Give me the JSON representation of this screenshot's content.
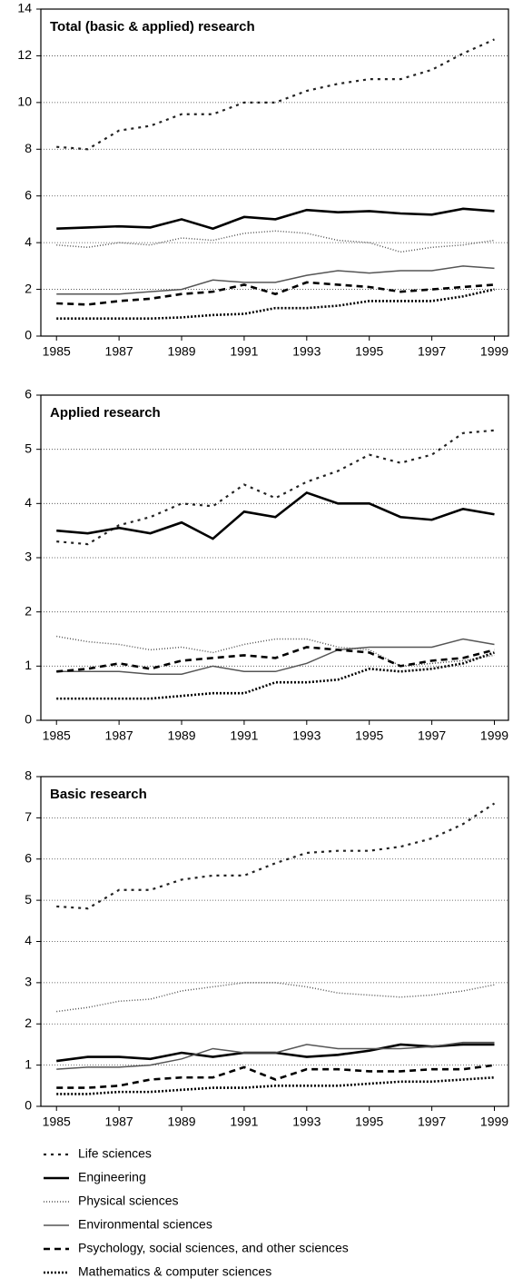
{
  "chart_data": [
    {
      "type": "line",
      "title": "Total (basic & applied) research",
      "x": [
        1985,
        1986,
        1987,
        1988,
        1989,
        1990,
        1991,
        1992,
        1993,
        1994,
        1995,
        1996,
        1997,
        1998,
        1999
      ],
      "xlim": [
        1984.5,
        1999.45
      ],
      "xticks": [
        1985,
        1987,
        1989,
        1991,
        1993,
        1995,
        1997,
        1999
      ],
      "ylim": [
        0,
        14
      ],
      "yticks": [
        0,
        2,
        4,
        6,
        8,
        10,
        12,
        14
      ],
      "grid": true,
      "series": [
        {
          "name": "Life sciences",
          "color": "#222",
          "dash": "3 5",
          "width": 2.2,
          "values": [
            8.1,
            8.0,
            8.8,
            9.0,
            9.5,
            9.5,
            10.0,
            10.0,
            10.5,
            10.8,
            11.0,
            11.0,
            11.4,
            12.1,
            12.7
          ]
        },
        {
          "name": "Engineering",
          "color": "#000",
          "dash": "none",
          "width": 2.6,
          "values": [
            4.6,
            4.65,
            4.7,
            4.65,
            5.0,
            4.6,
            5.1,
            5.0,
            5.4,
            5.3,
            5.35,
            5.25,
            5.2,
            5.45,
            5.35
          ]
        },
        {
          "name": "Physical sciences",
          "color": "#555",
          "dash": "1 2",
          "width": 1.5,
          "values": [
            3.9,
            3.8,
            4.0,
            3.9,
            4.2,
            4.1,
            4.4,
            4.5,
            4.4,
            4.1,
            4.0,
            3.6,
            3.8,
            3.9,
            4.1
          ]
        },
        {
          "name": "Environmental sciences",
          "color": "#555",
          "dash": "none",
          "width": 1.5,
          "values": [
            1.8,
            1.8,
            1.8,
            1.9,
            2.0,
            2.4,
            2.3,
            2.3,
            2.6,
            2.8,
            2.7,
            2.8,
            2.8,
            3.0,
            2.9
          ]
        },
        {
          "name": "Psychology, social sciences, and other sciences",
          "color": "#000",
          "dash": "7 5",
          "width": 2.6,
          "values": [
            1.4,
            1.35,
            1.5,
            1.6,
            1.8,
            1.9,
            2.2,
            1.8,
            2.3,
            2.2,
            2.1,
            1.9,
            2.0,
            2.1,
            2.2
          ]
        },
        {
          "name": "Mathematics & computer sciences",
          "color": "#000",
          "dash": "2 2",
          "width": 2.6,
          "values": [
            0.75,
            0.75,
            0.75,
            0.75,
            0.8,
            0.9,
            0.95,
            1.2,
            1.2,
            1.3,
            1.5,
            1.5,
            1.5,
            1.7,
            2.0
          ]
        }
      ]
    },
    {
      "type": "line",
      "title": "Applied research",
      "x": [
        1985,
        1986,
        1987,
        1988,
        1989,
        1990,
        1991,
        1992,
        1993,
        1994,
        1995,
        1996,
        1997,
        1998,
        1999
      ],
      "xlim": [
        1984.5,
        1999.45
      ],
      "xticks": [
        1985,
        1987,
        1989,
        1991,
        1993,
        1995,
        1997,
        1999
      ],
      "ylim": [
        0,
        6
      ],
      "yticks": [
        0,
        1,
        2,
        3,
        4,
        5,
        6
      ],
      "grid": true,
      "series": [
        {
          "name": "Life sciences",
          "color": "#222",
          "dash": "3 5",
          "width": 2.2,
          "values": [
            3.3,
            3.25,
            3.6,
            3.75,
            4.0,
            3.95,
            4.35,
            4.1,
            4.4,
            4.6,
            4.9,
            4.75,
            4.9,
            5.3,
            5.35
          ]
        },
        {
          "name": "Engineering",
          "color": "#000",
          "dash": "none",
          "width": 2.6,
          "values": [
            3.5,
            3.45,
            3.55,
            3.45,
            3.65,
            3.35,
            3.85,
            3.75,
            4.2,
            4.0,
            4.0,
            3.75,
            3.7,
            3.9,
            3.8
          ]
        },
        {
          "name": "Physical sciences",
          "color": "#555",
          "dash": "1 2",
          "width": 1.5,
          "values": [
            1.55,
            1.45,
            1.4,
            1.3,
            1.35,
            1.25,
            1.4,
            1.5,
            1.5,
            1.35,
            1.3,
            1.0,
            1.05,
            1.1,
            1.2
          ]
        },
        {
          "name": "Environmental sciences",
          "color": "#555",
          "dash": "none",
          "width": 1.5,
          "values": [
            0.9,
            0.9,
            0.9,
            0.85,
            0.85,
            1.0,
            0.9,
            0.9,
            1.05,
            1.3,
            1.35,
            1.35,
            1.35,
            1.5,
            1.4
          ]
        },
        {
          "name": "Psychology, social sciences, and other sciences",
          "color": "#000",
          "dash": "7 5",
          "width": 2.6,
          "values": [
            0.9,
            0.95,
            1.05,
            0.95,
            1.1,
            1.15,
            1.2,
            1.15,
            1.35,
            1.3,
            1.25,
            1.0,
            1.1,
            1.15,
            1.3
          ]
        },
        {
          "name": "Mathematics & computer sciences",
          "color": "#000",
          "dash": "2 2",
          "width": 2.6,
          "values": [
            0.4,
            0.4,
            0.4,
            0.4,
            0.45,
            0.5,
            0.5,
            0.7,
            0.7,
            0.75,
            0.95,
            0.9,
            0.95,
            1.05,
            1.25
          ]
        }
      ]
    },
    {
      "type": "line",
      "title": "Basic research",
      "x": [
        1985,
        1986,
        1987,
        1988,
        1989,
        1990,
        1991,
        1992,
        1993,
        1994,
        1995,
        1996,
        1997,
        1998,
        1999
      ],
      "xlim": [
        1984.5,
        1999.45
      ],
      "xticks": [
        1985,
        1987,
        1989,
        1991,
        1993,
        1995,
        1997,
        1999
      ],
      "ylim": [
        0,
        8
      ],
      "yticks": [
        0,
        1,
        2,
        3,
        4,
        5,
        6,
        7,
        8
      ],
      "grid": true,
      "series": [
        {
          "name": "Life sciences",
          "color": "#222",
          "dash": "3 5",
          "width": 2.2,
          "values": [
            4.85,
            4.8,
            5.25,
            5.25,
            5.5,
            5.6,
            5.6,
            5.9,
            6.15,
            6.2,
            6.2,
            6.3,
            6.5,
            6.85,
            7.35
          ]
        },
        {
          "name": "Engineering",
          "color": "#000",
          "dash": "none",
          "width": 2.6,
          "values": [
            1.1,
            1.2,
            1.2,
            1.15,
            1.3,
            1.2,
            1.3,
            1.3,
            1.2,
            1.25,
            1.35,
            1.5,
            1.45,
            1.5,
            1.5
          ]
        },
        {
          "name": "Physical sciences",
          "color": "#555",
          "dash": "1 2",
          "width": 1.5,
          "values": [
            2.3,
            2.4,
            2.55,
            2.6,
            2.8,
            2.9,
            3.0,
            3.0,
            2.9,
            2.75,
            2.7,
            2.65,
            2.7,
            2.8,
            2.95
          ]
        },
        {
          "name": "Environmental sciences",
          "color": "#555",
          "dash": "none",
          "width": 1.5,
          "values": [
            0.9,
            0.95,
            0.95,
            1.0,
            1.15,
            1.4,
            1.3,
            1.3,
            1.5,
            1.4,
            1.4,
            1.4,
            1.45,
            1.55,
            1.55
          ]
        },
        {
          "name": "Psychology, social sciences, and other sciences",
          "color": "#000",
          "dash": "7 5",
          "width": 2.6,
          "values": [
            0.45,
            0.45,
            0.5,
            0.65,
            0.7,
            0.7,
            0.95,
            0.65,
            0.9,
            0.9,
            0.85,
            0.85,
            0.9,
            0.9,
            1.0
          ]
        },
        {
          "name": "Mathematics & computer sciences",
          "color": "#000",
          "dash": "2 2",
          "width": 2.6,
          "values": [
            0.3,
            0.3,
            0.35,
            0.35,
            0.4,
            0.45,
            0.45,
            0.5,
            0.5,
            0.5,
            0.55,
            0.6,
            0.6,
            0.65,
            0.7
          ]
        }
      ]
    }
  ]
}
